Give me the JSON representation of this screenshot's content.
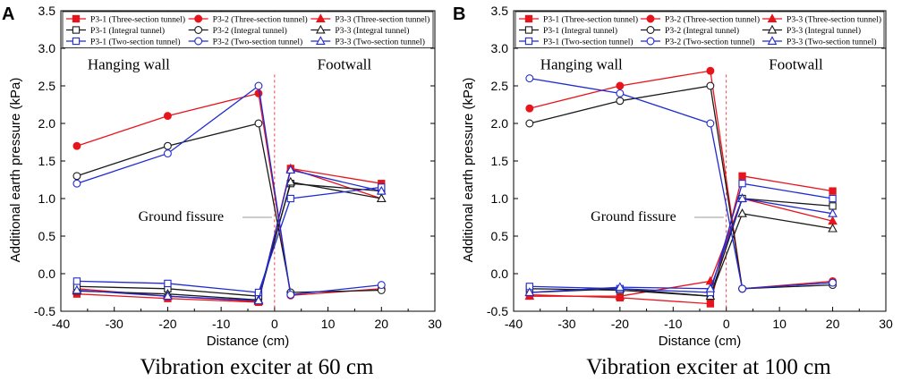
{
  "chart_data": [
    {
      "type": "line",
      "panel_label": "A",
      "caption": "Vibration exciter at 60 cm",
      "xlabel": "Distance (cm)",
      "ylabel": "Additional earth pressure (kPa)",
      "xlim": [
        -40,
        30
      ],
      "ylim": [
        -0.5,
        3.5
      ],
      "xticks": [
        -40,
        -30,
        -20,
        -10,
        0,
        10,
        20,
        30
      ],
      "yticks": [
        -0.5,
        0.0,
        0.5,
        1.0,
        1.5,
        2.0,
        2.5,
        3.0,
        3.5
      ],
      "xtick_labels": [
        "-40",
        "-30",
        "-20",
        "-10",
        "0",
        "10",
        "20",
        "30"
      ],
      "ytick_labels": [
        "-0.5",
        "0.0",
        "0.5",
        "1.0",
        "1.5",
        "2.0",
        "2.5",
        "3.0",
        "3.5"
      ],
      "annotations": {
        "hanging_wall": "Hanging wall",
        "footwall": "Footwall",
        "ground_fissure": "Ground fissure"
      },
      "legend_position": "top",
      "series": [
        {
          "name": "P3-1 (Three-section tunnel)",
          "color": "#e8141c",
          "marker": "square",
          "filled": true,
          "x": [
            -37,
            -20,
            -3,
            3,
            20
          ],
          "y": [
            -0.27,
            -0.33,
            -0.38,
            1.4,
            1.2
          ]
        },
        {
          "name": "P3-2 (Three-section tunnel)",
          "color": "#e8141c",
          "marker": "circle",
          "filled": true,
          "x": [
            -37,
            -20,
            -3,
            3,
            20
          ],
          "y": [
            1.7,
            2.1,
            2.4,
            -0.29,
            -0.2
          ]
        },
        {
          "name": "P3-3 (Three-section tunnel)",
          "color": "#e8141c",
          "marker": "triangle",
          "filled": true,
          "x": [
            -37,
            -20,
            -3,
            3,
            20
          ],
          "y": [
            -0.2,
            -0.3,
            -0.37,
            1.4,
            1.0
          ]
        },
        {
          "name": "P3-1 (Integral tunnel)",
          "color": "#1a1a1a",
          "marker": "square",
          "filled": false,
          "x": [
            -37,
            -20,
            -3,
            3,
            20
          ],
          "y": [
            -0.17,
            -0.2,
            -0.3,
            1.2,
            1.1
          ]
        },
        {
          "name": "P3-2 (Integral tunnel)",
          "color": "#1a1a1a",
          "marker": "circle",
          "filled": false,
          "x": [
            -37,
            -20,
            -3,
            3,
            20
          ],
          "y": [
            1.3,
            1.7,
            2.0,
            -0.25,
            -0.22
          ]
        },
        {
          "name": "P3-3 (Integral tunnel)",
          "color": "#1a1a1a",
          "marker": "triangle",
          "filled": false,
          "x": [
            -37,
            -20,
            -3,
            3,
            20
          ],
          "y": [
            -0.23,
            -0.27,
            -0.35,
            1.22,
            1.0
          ]
        },
        {
          "name": "P3-1 (Two-section tunnel)",
          "color": "#1f2bd1",
          "marker": "square",
          "filled": false,
          "x": [
            -37,
            -20,
            -3,
            3,
            20
          ],
          "y": [
            -0.1,
            -0.13,
            -0.25,
            1.0,
            1.15
          ]
        },
        {
          "name": "P3-2 (Two-section tunnel)",
          "color": "#1f2bd1",
          "marker": "circle",
          "filled": false,
          "x": [
            -37,
            -20,
            -3,
            3,
            20
          ],
          "y": [
            1.2,
            1.6,
            2.5,
            -0.28,
            -0.15
          ]
        },
        {
          "name": "P3-3 (Two-section tunnel)",
          "color": "#1f2bd1",
          "marker": "triangle",
          "filled": false,
          "x": [
            -37,
            -20,
            -3,
            3,
            20
          ],
          "y": [
            -0.22,
            -0.3,
            -0.36,
            1.38,
            1.1
          ]
        }
      ]
    },
    {
      "type": "line",
      "panel_label": "B",
      "caption": "Vibration exciter at 100 cm",
      "xlabel": "Distance (cm)",
      "ylabel": "Additional earth pressure (kPa)",
      "xlim": [
        -40,
        30
      ],
      "ylim": [
        -0.5,
        3.5
      ],
      "xticks": [
        -40,
        -30,
        -20,
        -10,
        0,
        10,
        20,
        30
      ],
      "yticks": [
        -0.5,
        0.0,
        0.5,
        1.0,
        1.5,
        2.0,
        2.5,
        3.0,
        3.5
      ],
      "xtick_labels": [
        "-40",
        "-30",
        "-20",
        "-10",
        "0",
        "10",
        "20",
        "30"
      ],
      "ytick_labels": [
        "-0.5",
        "0.0",
        "0.5",
        "1.0",
        "1.5",
        "2.0",
        "2.5",
        "3.0",
        "3.5"
      ],
      "annotations": {
        "hanging_wall": "Hanging wall",
        "footwall": "Footwall",
        "ground_fissure": "Ground fissure"
      },
      "legend_position": "top",
      "series": [
        {
          "name": "P3-1 (Three-section tunnel)",
          "color": "#e8141c",
          "marker": "square",
          "filled": true,
          "x": [
            -37,
            -20,
            -3,
            3,
            20
          ],
          "y": [
            -0.28,
            -0.32,
            -0.4,
            1.3,
            1.1
          ]
        },
        {
          "name": "P3-2 (Three-section tunnel)",
          "color": "#e8141c",
          "marker": "circle",
          "filled": true,
          "x": [
            -37,
            -20,
            -3,
            3,
            20
          ],
          "y": [
            2.2,
            2.5,
            2.7,
            -0.2,
            -0.1
          ]
        },
        {
          "name": "P3-3 (Three-section tunnel)",
          "color": "#e8141c",
          "marker": "triangle",
          "filled": true,
          "x": [
            -37,
            -20,
            -3,
            3,
            20
          ],
          "y": [
            -0.3,
            -0.3,
            -0.1,
            1.0,
            0.7
          ]
        },
        {
          "name": "P3-1 (Integral tunnel)",
          "color": "#1a1a1a",
          "marker": "square",
          "filled": false,
          "x": [
            -37,
            -20,
            -3,
            3,
            20
          ],
          "y": [
            -0.2,
            -0.22,
            -0.3,
            1.0,
            0.9
          ]
        },
        {
          "name": "P3-2 (Integral tunnel)",
          "color": "#1a1a1a",
          "marker": "circle",
          "filled": false,
          "x": [
            -37,
            -20,
            -3,
            3,
            20
          ],
          "y": [
            2.0,
            2.3,
            2.5,
            -0.2,
            -0.15
          ]
        },
        {
          "name": "P3-3 (Integral tunnel)",
          "color": "#1a1a1a",
          "marker": "triangle",
          "filled": false,
          "x": [
            -37,
            -20,
            -3,
            3,
            20
          ],
          "y": [
            -0.25,
            -0.2,
            -0.3,
            0.8,
            0.6
          ]
        },
        {
          "name": "P3-1 (Two-section tunnel)",
          "color": "#1f2bd1",
          "marker": "square",
          "filled": false,
          "x": [
            -37,
            -20,
            -3,
            3,
            20
          ],
          "y": [
            -0.17,
            -0.2,
            -0.25,
            1.2,
            1.0
          ]
        },
        {
          "name": "P3-2 (Two-section tunnel)",
          "color": "#1f2bd1",
          "marker": "circle",
          "filled": false,
          "x": [
            -37,
            -20,
            -3,
            3,
            20
          ],
          "y": [
            2.6,
            2.4,
            2.0,
            -0.2,
            -0.12
          ]
        },
        {
          "name": "P3-3 (Two-section tunnel)",
          "color": "#1f2bd1",
          "marker": "triangle",
          "filled": false,
          "x": [
            -37,
            -20,
            -3,
            3,
            20
          ],
          "y": [
            -0.25,
            -0.18,
            -0.2,
            1.0,
            0.8
          ]
        }
      ]
    }
  ]
}
